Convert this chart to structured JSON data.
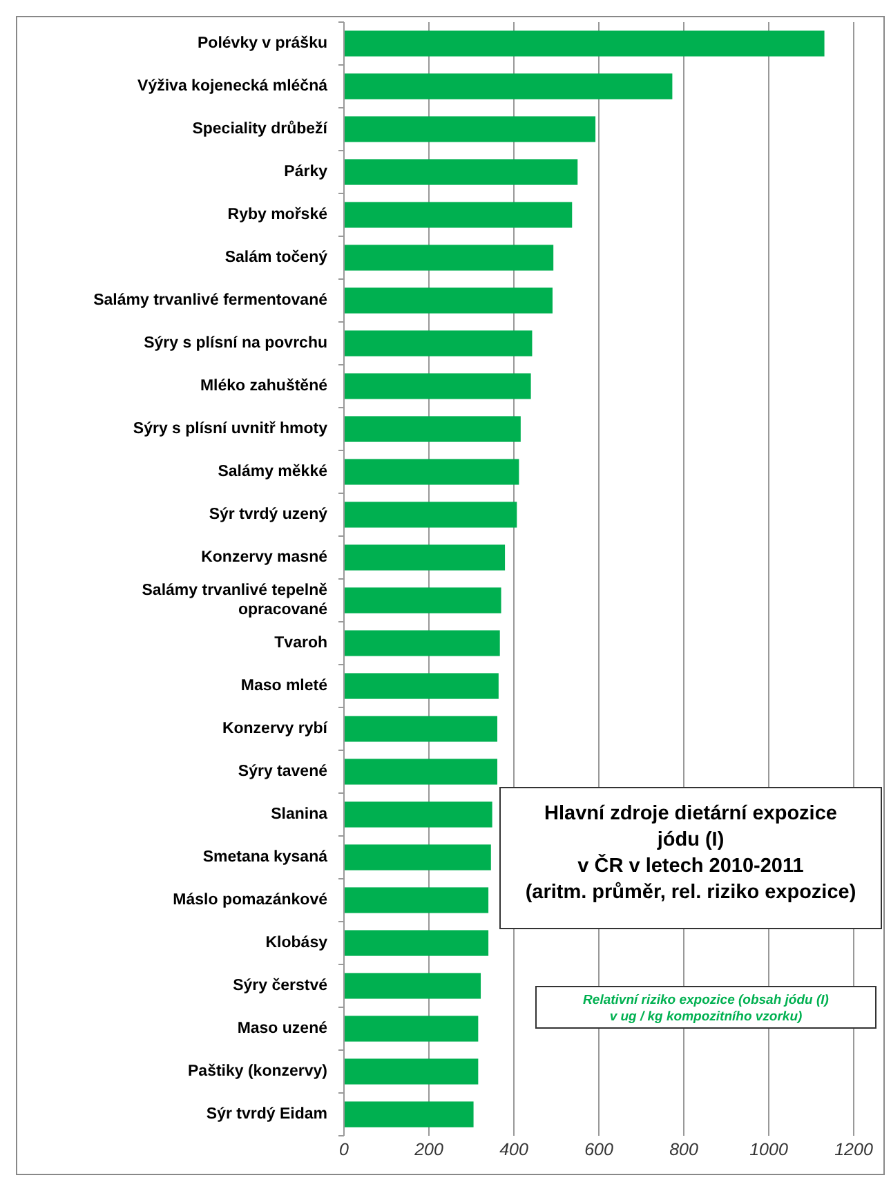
{
  "chart_data": {
    "type": "bar",
    "orientation": "horizontal",
    "title": "Hlavní zdroje dietární expozice\njódu (I)\nv ČR v letech 2010-2011\n(aritm. průměr, rel. riziko expozice)",
    "annotations": [
      "Relativní riziko expozice (obsah jódu (I)\nv ug / kg kompozitního vzorku)"
    ],
    "categories": [
      "Polévky v prášku",
      "Výživa kojenecká mléčná",
      "Speciality drůbeží",
      "Párky",
      "Ryby mořské",
      "Salám točený",
      "Salámy trvanlivé fermentované",
      "Sýry s plísní na povrchu",
      "Mléko zahuštěné",
      "Sýry s plísní uvnitř hmoty",
      "Salámy měkké",
      "Sýr tvrdý uzený",
      "Konzervy masné",
      "Salámy trvanlivé tepelně opracované",
      "Tvaroh",
      "Maso mleté",
      "Konzervy rybí",
      "Sýry tavené",
      "Slanina",
      "Smetana kysaná",
      "Máslo pomazánkové",
      "Klobásy",
      "Sýry čerstvé",
      "Maso uzené",
      "Paštiky (konzervy)",
      "Sýr tvrdý Eidam"
    ],
    "values": [
      1131,
      773,
      592,
      550,
      537,
      493,
      491,
      443,
      440,
      416,
      412,
      407,
      379,
      370,
      367,
      364,
      361,
      361,
      349,
      346,
      340,
      340,
      322,
      316,
      316,
      305
    ],
    "color": "#00b050",
    "xlim": [
      0,
      1200
    ],
    "xticks": [
      0,
      200,
      400,
      600,
      800,
      1000,
      1200
    ],
    "grid": "x"
  }
}
